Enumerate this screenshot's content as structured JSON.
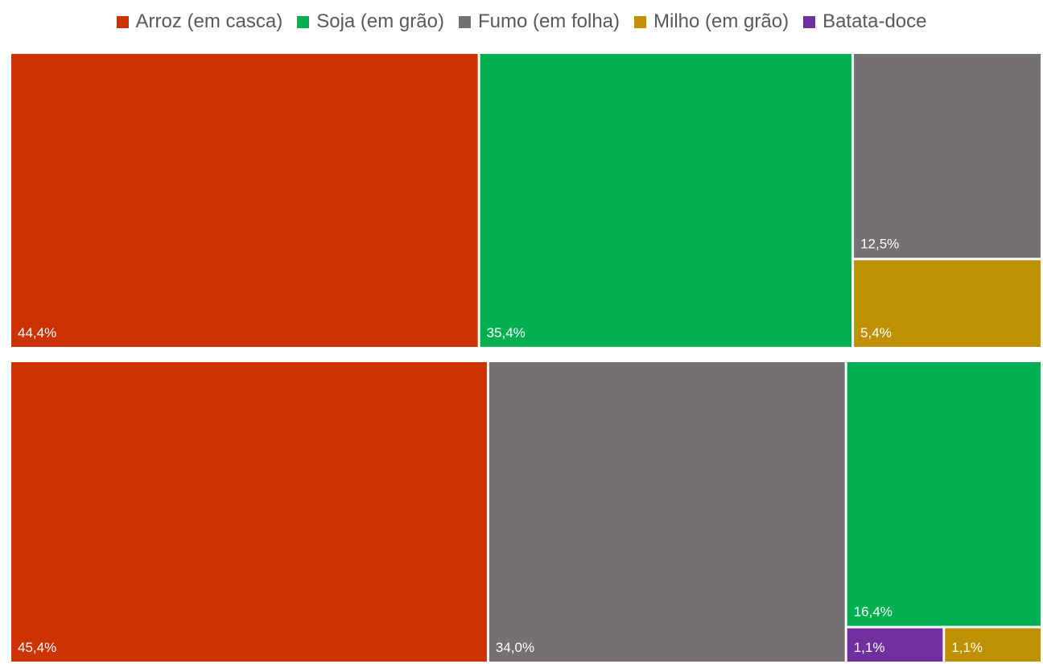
{
  "chart_data": {
    "type": "treemap",
    "colors": {
      "Arroz (em casca)": "#cc3300",
      "Soja (em grão)": "#00b050",
      "Fumo (em folha)": "#767171",
      "Milho (em grão)": "#bf9000",
      "Batata-doce": "#7030a0"
    },
    "legend": {
      "position": "top",
      "entries": [
        "Arroz (em casca)",
        "Soja (em grão)",
        "Fumo (em folha)",
        "Milho (em grão)",
        "Batata-doce"
      ]
    },
    "groups": [
      {
        "items": [
          {
            "category": "Arroz (em casca)",
            "value": 44.4,
            "label": "44,4%"
          },
          {
            "category": "Soja (em grão)",
            "value": 35.4,
            "label": "35,4%"
          },
          {
            "category": "Fumo (em folha)",
            "value": 12.5,
            "label": "12,5%"
          },
          {
            "category": "Milho (em grão)",
            "value": 5.4,
            "label": "5,4%"
          }
        ]
      },
      {
        "items": [
          {
            "category": "Arroz (em casca)",
            "value": 45.4,
            "label": "45,4%"
          },
          {
            "category": "Fumo (em folha)",
            "value": 34.0,
            "label": "34,0%"
          },
          {
            "category": "Soja (em grão)",
            "value": 16.4,
            "label": "16,4%"
          },
          {
            "category": "Batata-doce",
            "value": 1.1,
            "label": "1,1%"
          },
          {
            "category": "Milho (em grão)",
            "value": 1.1,
            "label": "1,1%"
          }
        ]
      }
    ]
  }
}
